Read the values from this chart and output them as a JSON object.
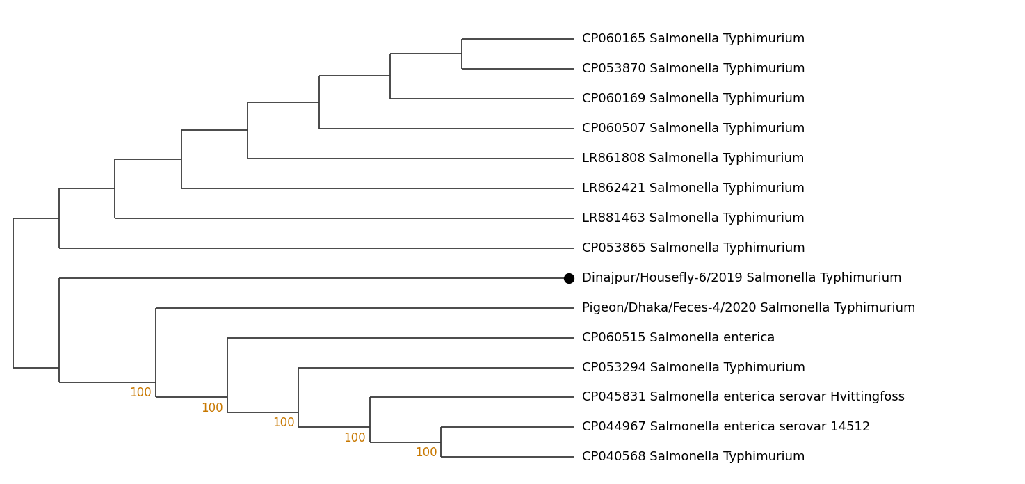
{
  "taxa": [
    "CP060165 Salmonella Typhimurium",
    "CP053870 Salmonella Typhimurium",
    "CP060169 Salmonella Typhimurium",
    "CP060507 Salmonella Typhimurium",
    "LR861808 Salmonella Typhimurium",
    "LR862421 Salmonella Typhimurium",
    "LR881463 Salmonella Typhimurium",
    "CP053865 Salmonella Typhimurium",
    "Dinajpur/Housefly-6/2019 Salmonella Typhimurium",
    "Pigeon/Dhaka/Feces-4/2020 Salmonella Typhimurium",
    "CP060515 Salmonella enterica",
    "CP053294 Salmonella Typhimurium",
    "CP045831 Salmonella enterica serovar Hvittingfoss",
    "CP044967 Salmonella enterica serovar 14512",
    "CP040568 Salmonella Typhimurium"
  ],
  "special_taxon_idx": 8,
  "background_color": "#ffffff",
  "line_color": "#3a3a3a",
  "text_color": "#000000",
  "bootstrap_color": "#c87800",
  "fontsize": 13,
  "bootstrap_fontsize": 12,
  "fig_width": 14.74,
  "fig_height": 6.96,
  "dpi": 100
}
